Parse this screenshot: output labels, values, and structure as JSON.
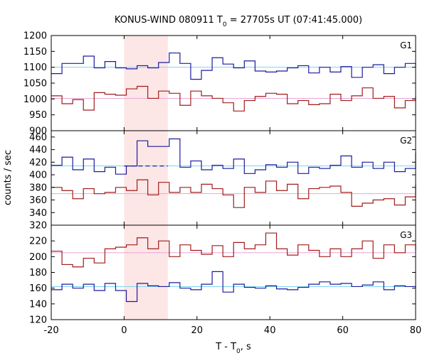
{
  "chart_data": {
    "type": "line",
    "title": "KONUS-WIND 080911 T",
    "title_sub": "0",
    "title_rest": " = 27705s UT (07:41:45.000)",
    "xlabel": "T - T",
    "xlabel_sub": "0",
    "xlabel_rest": ", s",
    "ylabel": "counts / sec",
    "xlim": [
      -20,
      80
    ],
    "x_ticks": [
      "-20",
      "0",
      "20",
      "40",
      "60",
      "80"
    ],
    "highlight_interval": [
      0,
      12
    ],
    "highlight_color": "#fde6e6",
    "bin_width": 2.944,
    "bin_start": -20,
    "panels": [
      {
        "name": "G1",
        "ylim": [
          900,
          1200
        ],
        "y_ticks": [
          "900",
          "950",
          "1000",
          "1050",
          "1100",
          "1150",
          "1200"
        ],
        "series": [
          {
            "color": "#1c1c9c",
            "values": [
              1080,
              1112,
              1112,
              1135,
              1098,
              1118,
              1098,
              1095,
              1105,
              1098,
              1115,
              1145,
              1112,
              1062,
              1090,
              1130,
              1110,
              1098,
              1120,
              1088,
              1085,
              1088,
              1098,
              1105,
              1082,
              1100,
              1085,
              1102,
              1068,
              1100,
              1108,
              1080,
              1100,
              1112,
              1105,
              1100
            ]
          },
          {
            "color": "#a01c1c",
            "values": [
              1010,
              985,
              998,
              965,
              1020,
              1015,
              1012,
              1032,
              1040,
              1002,
              1025,
              1018,
              980,
              1025,
              1010,
              1002,
              988,
              962,
              995,
              1008,
              1018,
              1015,
              985,
              995,
              982,
              985,
              1015,
              995,
              1010,
              1035,
              1002,
              1008,
              972,
              995,
              1008,
              1005
            ]
          }
        ],
        "background_levels": [
          {
            "value": 1100,
            "color": "#7fd3ef"
          },
          {
            "value": 1002,
            "color": "#e8a6d6"
          }
        ]
      },
      {
        "name": "G2",
        "ylim": [
          320,
          470
        ],
        "y_ticks": [
          "320",
          "340",
          "360",
          "380",
          "400",
          "420",
          "440",
          "460"
        ],
        "series": [
          {
            "color": "#1c1c9c",
            "values": [
              415,
              428,
              408,
              425,
              405,
              412,
              401,
              414,
              454,
              445,
              445,
              457,
              412,
              422,
              408,
              415,
              410,
              425,
              402,
              408,
              416,
              412,
              420,
              402,
              412,
              410,
              415,
              430,
              412,
              420,
              410,
              420,
              405,
              410,
              415,
              435
            ]
          },
          {
            "color": "#a01c1c",
            "values": [
              380,
              375,
              362,
              378,
              370,
              372,
              380,
              375,
              392,
              368,
              388,
              372,
              380,
              372,
              385,
              378,
              368,
              348,
              380,
              372,
              390,
              375,
              385,
              362,
              378,
              380,
              382,
              372,
              350,
              355,
              360,
              362,
              352,
              365,
              385,
              375
            ]
          }
        ],
        "background_levels": [
          {
            "value": 414,
            "color": "#7fd3ef"
          },
          {
            "value": 370,
            "color": "#e8a6d6"
          }
        ],
        "signal_level": {
          "x0": 0,
          "x1": 12,
          "value": 414,
          "color": "#1c1c9c"
        }
      },
      {
        "name": "G3",
        "ylim": [
          120,
          240
        ],
        "y_ticks": [
          "120",
          "140",
          "160",
          "180",
          "200",
          "220"
        ],
        "series": [
          {
            "color": "#1c1c9c",
            "values": [
              158,
              165,
              160,
              165,
              157,
              166,
              157,
              143,
              166,
              163,
              162,
              167,
              160,
              158,
              165,
              181,
              155,
              165,
              161,
              160,
              163,
              159,
              158,
              161,
              165,
              168,
              165,
              166,
              162,
              164,
              168,
              158,
              163,
              162,
              160,
              163
            ]
          },
          {
            "color": "#a01c1c",
            "values": [
              207,
              190,
              187,
              198,
              192,
              210,
              212,
              215,
              224,
              210,
              220,
              200,
              215,
              208,
              203,
              214,
              200,
              218,
              210,
              215,
              230,
              210,
              202,
              215,
              208,
              200,
              210,
              200,
              210,
              220,
              198,
              215,
              205,
              215,
              210,
              208
            ]
          }
        ],
        "background_levels": [
          {
            "value": 205,
            "color": "#e8a6d6"
          },
          {
            "value": 162,
            "color": "#7fd3ef"
          }
        ]
      }
    ],
    "grid": false,
    "legend": "none"
  }
}
